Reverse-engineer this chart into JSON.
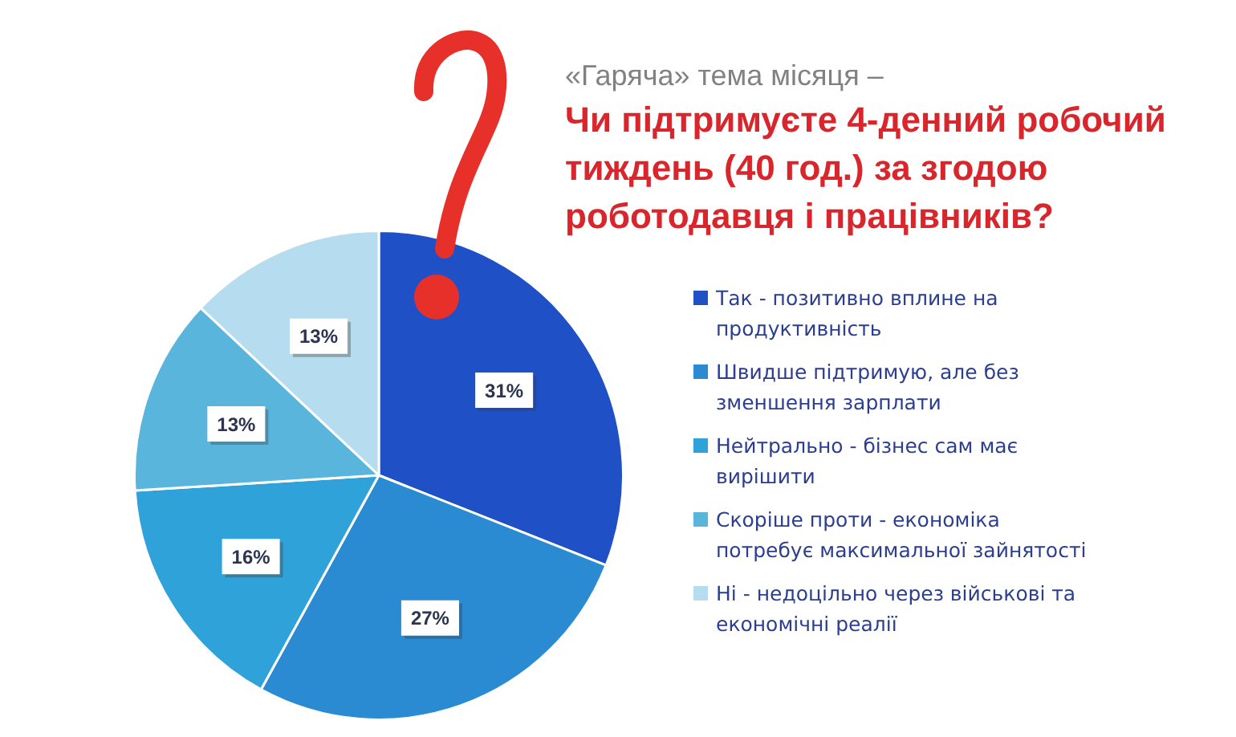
{
  "chart_data": {
    "type": "pie",
    "title": "«Гаряча» тема місяця –",
    "subtitle": "Чи підтримуєте 4-денний робочий тиждень (40 год.) за згодою роботодавця і працівників?",
    "categories": [
      "Так - позитивно вплине на продуктивність",
      "Швидше підтримую, але без зменшення зарплати",
      "Нейтрально - бізнес сам має вирішити",
      "Скоріше проти - економіка потребує максимальної зайнятості",
      "Ні - недоцільно через військові та економічні реалії"
    ],
    "values": [
      31,
      27,
      16,
      13,
      13
    ],
    "colors": [
      "#1f50c6",
      "#2a8ad2",
      "#30a2da",
      "#5ab5dd",
      "#b5ddef"
    ],
    "value_labels": [
      "31%",
      "27%",
      "16%",
      "13%",
      "13%"
    ],
    "legend": "right"
  }
}
